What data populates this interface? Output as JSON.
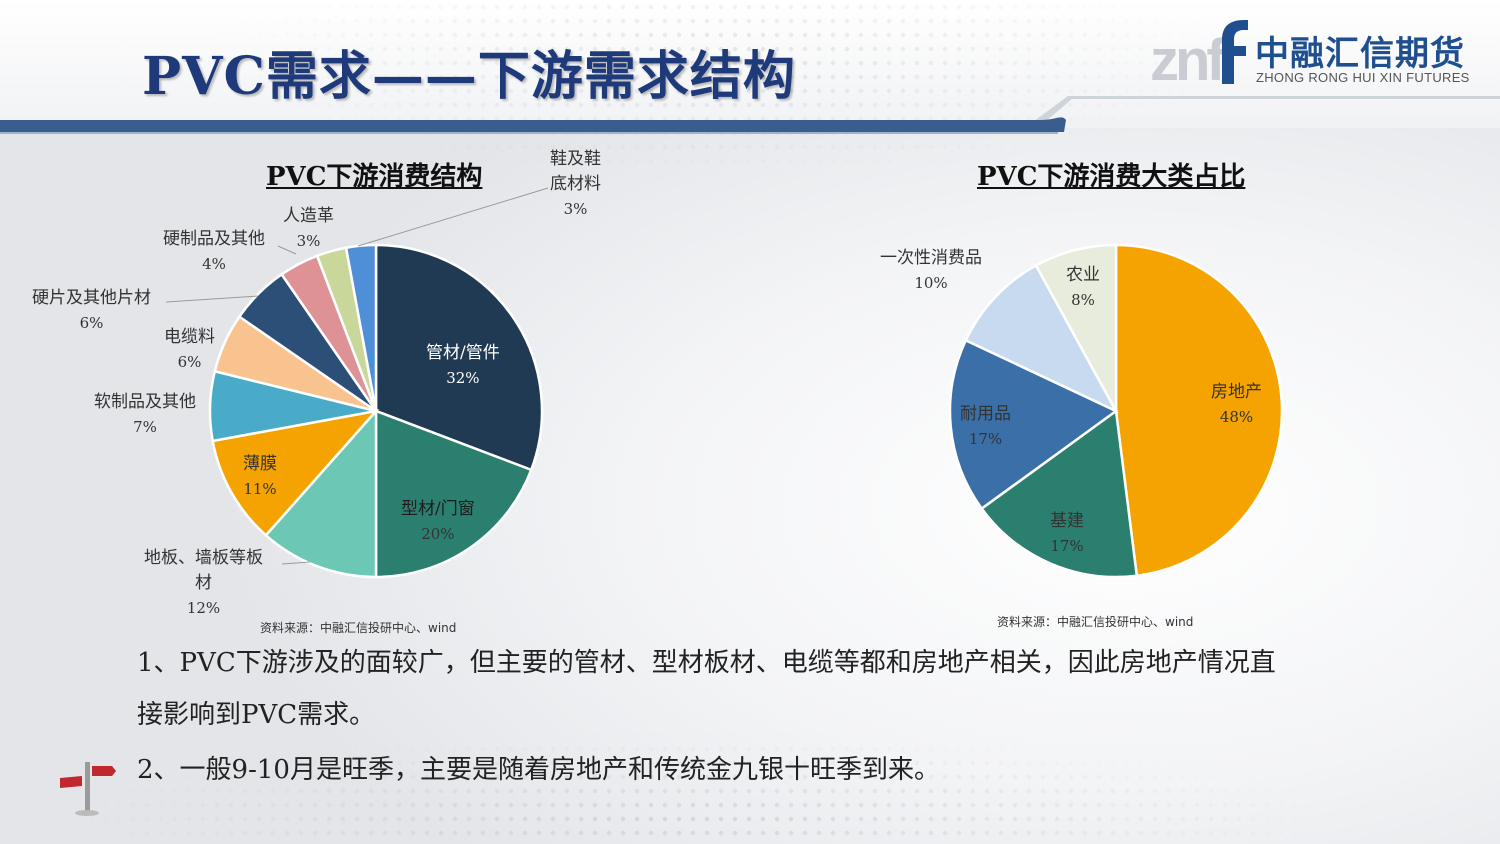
{
  "title": "PVC需求——下游需求结构",
  "logo": {
    "mark": "znf",
    "cn": "中融汇信期货",
    "en": "ZHONG RONG HUI XIN FUTURES"
  },
  "chart_data": [
    {
      "type": "pie",
      "title": "PVC下游消费结构",
      "unit": "%",
      "slices": [
        {
          "label": "管材/管件",
          "value": 32,
          "color": "#1f3a52"
        },
        {
          "label": "型材/门窗",
          "value": 20,
          "color": "#2b7f6e"
        },
        {
          "label": "地板、墙板等板材",
          "value": 12,
          "color": "#6cc7b5"
        },
        {
          "label": "薄膜",
          "value": 11,
          "color": "#f5a300"
        },
        {
          "label": "软制品及其他",
          "value": 7,
          "color": "#4aabc9"
        },
        {
          "label": "电缆料",
          "value": 6,
          "color": "#f9c38f"
        },
        {
          "label": "硬片及其他片材",
          "value": 6,
          "color": "#2c4f78"
        },
        {
          "label": "硬制品及其他",
          "value": 4,
          "color": "#df9295"
        },
        {
          "label": "人造革",
          "value": 3,
          "color": "#c9d89a"
        },
        {
          "label": "鞋及鞋底材料",
          "value": 3,
          "color": "#4f8fd8"
        }
      ],
      "source": "资料来源：中融汇信投研中心、wind"
    },
    {
      "type": "pie",
      "title": "PVC下游消费大类占比",
      "unit": "%",
      "slices": [
        {
          "label": "房地产",
          "value": 48,
          "color": "#f5a300"
        },
        {
          "label": "基建",
          "value": 17,
          "color": "#2b7f6e"
        },
        {
          "label": "耐用品",
          "value": 17,
          "color": "#3a6fa8"
        },
        {
          "label": "一次性消费品",
          "value": 10,
          "color": "#c8daf0"
        },
        {
          "label": "农业",
          "value": 8,
          "color": "#e8ecdc"
        }
      ],
      "source": "资料来源：中融汇信投研中心、wind"
    }
  ],
  "labels1": {
    "l0": {
      "name": "管材/管件",
      "pct": "32%"
    },
    "l1": {
      "name": "型材/门窗",
      "pct": "20%"
    },
    "l2": {
      "name1": "地板、墙板等板",
      "name2": "材",
      "pct": "12%"
    },
    "l3": {
      "name": "薄膜",
      "pct": "11%"
    },
    "l4": {
      "name": "软制品及其他",
      "pct": "7%"
    },
    "l5": {
      "name": "电缆料",
      "pct": "6%"
    },
    "l6": {
      "name": "硬片及其他片材",
      "pct": "6%"
    },
    "l7": {
      "name": "硬制品及其他",
      "pct": "4%"
    },
    "l8": {
      "name": "人造革",
      "pct": "3%"
    },
    "l9": {
      "name1": "鞋及鞋",
      "name2": "底材料",
      "pct": "3%"
    }
  },
  "labels2": {
    "l0": {
      "name": "房地产",
      "pct": "48%"
    },
    "l1": {
      "name": "基建",
      "pct": "17%"
    },
    "l2": {
      "name": "耐用品",
      "pct": "17%"
    },
    "l3": {
      "name": "一次性消费品",
      "pct": "10%"
    },
    "l4": {
      "name": "农业",
      "pct": "8%"
    }
  },
  "paragraphs": {
    "p1a": "1、PVC下游涉及的面较广，但主要的管材、型材板材、电缆等都和房地产相关，因此房地产情况直",
    "p1b": "接影响到PVC需求。",
    "p2": "2、一般9-10月是旺季，主要是随着房地产和传统金九银十旺季到来。"
  }
}
